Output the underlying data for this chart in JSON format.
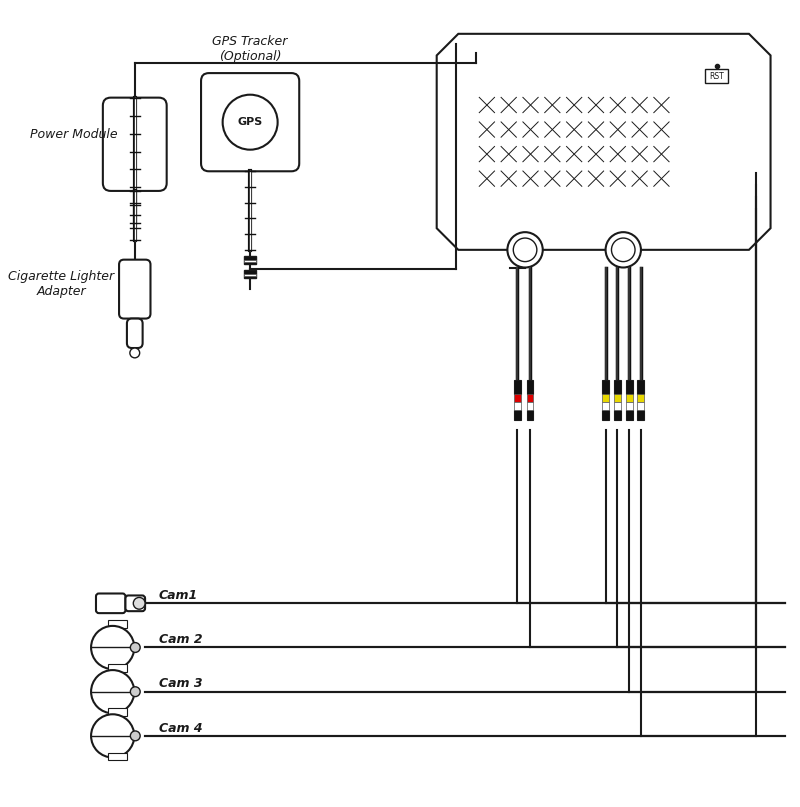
{
  "bg_color": "#ffffff",
  "line_color": "#1a1a1a",
  "box_color": "#ffffff",
  "text_color": "#1a1a1a",
  "labels": {
    "power_module": "Power Module",
    "gps_tracker": "GPS Tracker\n(Optional)",
    "gps_label": "GPS",
    "cigarette": "Cigarette Lighter\nAdapter",
    "rst_label": "RST",
    "cam1": "Cam1",
    "cam2": "Cam 2",
    "cam3": "Cam 3",
    "cam4": "Cam 4"
  },
  "colors": {
    "red": "#dd0000",
    "yellow": "#e8d800",
    "white": "#ffffff",
    "black": "#111111",
    "gray": "#888888",
    "light_gray": "#cccccc"
  }
}
